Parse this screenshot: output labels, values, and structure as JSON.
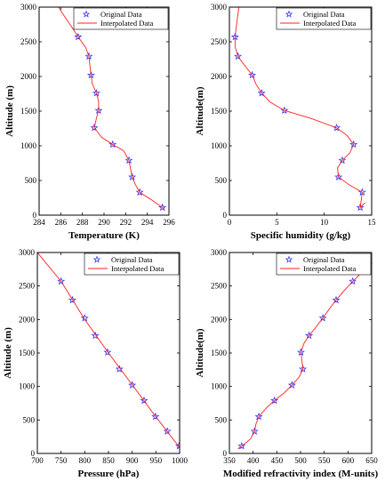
{
  "legend": {
    "original_label": "Original Data",
    "interpolated_label": "Interpolated Data",
    "marker_color": "#3333ff",
    "line_color": "#ff2020"
  },
  "chart_data": [
    {
      "type": "line",
      "xlabel": "Temperature (K)",
      "ylabel": "Altitude (m)",
      "xlim": [
        284,
        296
      ],
      "ylim": [
        0,
        3000
      ],
      "xticks": [
        284,
        286,
        288,
        290,
        292,
        294,
        296
      ],
      "yticks": [
        0,
        500,
        1000,
        1500,
        2000,
        2500,
        3000
      ],
      "legend_position": "top-right",
      "series": [
        {
          "name": "Original Data",
          "style": "markers",
          "x": [
            295.4,
            293.3,
            292.6,
            292.3,
            290.8,
            289.1,
            289.5,
            289.3,
            288.8,
            288.6,
            287.6
          ],
          "y": [
            110,
            330,
            550,
            790,
            1020,
            1260,
            1510,
            1760,
            2020,
            2290,
            2570
          ]
        },
        {
          "name": "Interpolated Data",
          "style": "line",
          "x": [
            295.6,
            295.4,
            294.4,
            293.3,
            292.9,
            292.6,
            292.3,
            291.8,
            290.8,
            289.8,
            289.1,
            289.3,
            289.5,
            289.5,
            289.3,
            288.9,
            288.8,
            288.7,
            288.6,
            288.3,
            287.6,
            286.9,
            286.2,
            285.8
          ],
          "y": [
            70,
            110,
            220,
            330,
            440,
            550,
            790,
            930,
            1020,
            1120,
            1260,
            1400,
            1510,
            1640,
            1760,
            1900,
            2020,
            2150,
            2290,
            2420,
            2570,
            2740,
            2900,
            3000
          ]
        }
      ]
    },
    {
      "type": "line",
      "xlabel": "Specific humidity (g/kg)",
      "ylabel": "Altitude(m)",
      "xlim": [
        0,
        15
      ],
      "ylim": [
        0,
        3000
      ],
      "xticks": [
        0,
        5,
        10,
        15
      ],
      "yticks": [
        0,
        500,
        1000,
        1500,
        2000,
        2500,
        3000
      ],
      "legend_position": "top-right",
      "series": [
        {
          "name": "Original Data",
          "style": "markers",
          "x": [
            13.8,
            14.0,
            11.5,
            11.9,
            13.1,
            11.3,
            5.8,
            3.4,
            2.4,
            0.9,
            0.6
          ],
          "y": [
            110,
            330,
            550,
            790,
            1020,
            1260,
            1510,
            1760,
            2020,
            2290,
            2570
          ]
        },
        {
          "name": "Interpolated Data",
          "style": "line",
          "x": [
            14.3,
            13.8,
            14.0,
            12.6,
            11.5,
            11.4,
            11.9,
            12.7,
            13.1,
            12.4,
            11.3,
            8.5,
            5.8,
            4.3,
            3.4,
            2.8,
            2.4,
            1.6,
            0.9,
            0.6,
            0.6,
            0.8,
            1.0
          ],
          "y": [
            180,
            110,
            330,
            440,
            550,
            680,
            790,
            900,
            1020,
            1150,
            1260,
            1400,
            1510,
            1630,
            1760,
            1890,
            2020,
            2160,
            2290,
            2430,
            2570,
            2800,
            3000
          ]
        }
      ]
    },
    {
      "type": "line",
      "xlabel": "Pressure (hPa)",
      "ylabel": "Altitude (m)",
      "xlim": [
        700,
        1000
      ],
      "ylim": [
        0,
        3000
      ],
      "xticks": [
        700,
        750,
        800,
        850,
        900,
        950,
        1000
      ],
      "yticks": [
        0,
        500,
        1000,
        1500,
        2000,
        2500,
        3000
      ],
      "legend_position": "top-right",
      "series": [
        {
          "name": "Original Data",
          "style": "markers",
          "x": [
            999,
            974,
            949,
            925,
            900,
            873,
            848,
            822,
            800,
            774,
            750
          ],
          "y": [
            110,
            330,
            550,
            790,
            1020,
            1260,
            1510,
            1760,
            2020,
            2290,
            2570
          ]
        },
        {
          "name": "Interpolated Data",
          "style": "line",
          "x": [
            1000,
            950,
            900,
            850,
            800,
            750,
            700
          ],
          "y": [
            90,
            545,
            1025,
            1500,
            2000,
            2570,
            3000
          ]
        }
      ]
    },
    {
      "type": "line",
      "xlabel": "Modified  refractivity  index (M-units)",
      "ylabel": "Altitude(m)",
      "xlim": [
        350,
        650
      ],
      "ylim": [
        0,
        3000
      ],
      "xticks": [
        350,
        400,
        450,
        500,
        550,
        600,
        650
      ],
      "yticks": [
        0,
        500,
        1000,
        1500,
        2000,
        2500,
        3000
      ],
      "legend_position": "top-right",
      "series": [
        {
          "name": "Original Data",
          "style": "markers",
          "x": [
            376,
            403,
            412,
            445,
            482,
            505,
            501,
            518,
            547,
            575,
            610
          ],
          "y": [
            110,
            330,
            550,
            790,
            1020,
            1260,
            1510,
            1760,
            2020,
            2290,
            2570
          ]
        },
        {
          "name": "Interpolated Data",
          "style": "line",
          "x": [
            368,
            376,
            395,
            403,
            406,
            412,
            428,
            445,
            465,
            482,
            497,
            505,
            501,
            507,
            518,
            533,
            547,
            561,
            575,
            592,
            610,
            632,
            650
          ],
          "y": [
            70,
            110,
            220,
            330,
            440,
            550,
            680,
            790,
            900,
            1020,
            1140,
            1260,
            1510,
            1640,
            1760,
            1890,
            2020,
            2160,
            2290,
            2430,
            2570,
            2720,
            2850
          ]
        }
      ]
    }
  ]
}
